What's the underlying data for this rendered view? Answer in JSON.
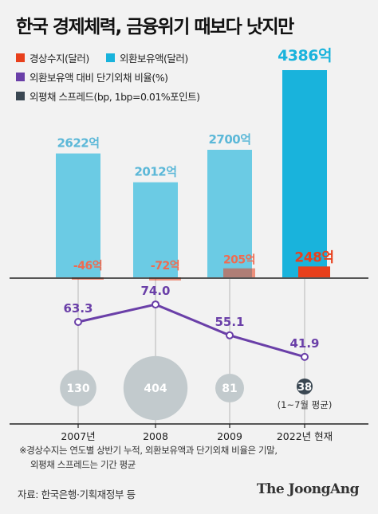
{
  "title": "한국 경제체력, 금융위기 때보다 낫지만",
  "legend": [
    {
      "label": "경상수지(달러)",
      "color": "#e8401c"
    },
    {
      "label": "외환보유액(달러)",
      "color": "#19b3dc"
    },
    {
      "label": "외환보유액 대비 단기외채 비율(%)",
      "color": "#6a3fa8"
    },
    {
      "label": "외평채 스프레드(bp, 1bp=0.01%포인트)",
      "color": "#3a4752"
    }
  ],
  "chart_data": [
    {
      "type": "bar",
      "categories": [
        "2007년",
        "2008",
        "2009",
        "2022년 현재"
      ],
      "series": [
        {
          "name": "외환보유액(달러)",
          "values": [
            2622,
            2012,
            2700,
            4386
          ],
          "labels": [
            "2622억",
            "2012억",
            "2700억",
            "4386억"
          ]
        },
        {
          "name": "경상수지(달러)",
          "values": [
            -46,
            -72,
            205,
            248
          ],
          "labels": [
            "-46억",
            "-72억",
            "205억",
            "248억"
          ]
        }
      ]
    },
    {
      "type": "line",
      "categories": [
        "2007년",
        "2008",
        "2009",
        "2022년 현재"
      ],
      "series": [
        {
          "name": "외환보유액 대비 단기외채 비율(%)",
          "values": [
            63.3,
            74.0,
            55.1,
            41.9
          ],
          "labels": [
            "63.3",
            "74.0",
            "55.1",
            "41.9"
          ]
        }
      ]
    },
    {
      "type": "scatter",
      "categories": [
        "2007년",
        "2008",
        "2009",
        "2022년 현재"
      ],
      "series": [
        {
          "name": "외평채 스프레드(bp, 1bp=0.01%포인트)",
          "values": [
            130,
            404,
            81,
            38
          ],
          "labels": [
            "130",
            "404",
            "81",
            "38"
          ]
        }
      ],
      "annotations": [
        "(1~7월 평균)"
      ]
    }
  ],
  "footnotes": [
    "※경상수지는 연도별 상반기 누적, 외환보유액과 단기외채 비율은 기말,",
    "외평채 스프레드는 기간 평균"
  ],
  "source": "자료: 한국은행·기획재정부 등",
  "brand": "The JoongAng"
}
